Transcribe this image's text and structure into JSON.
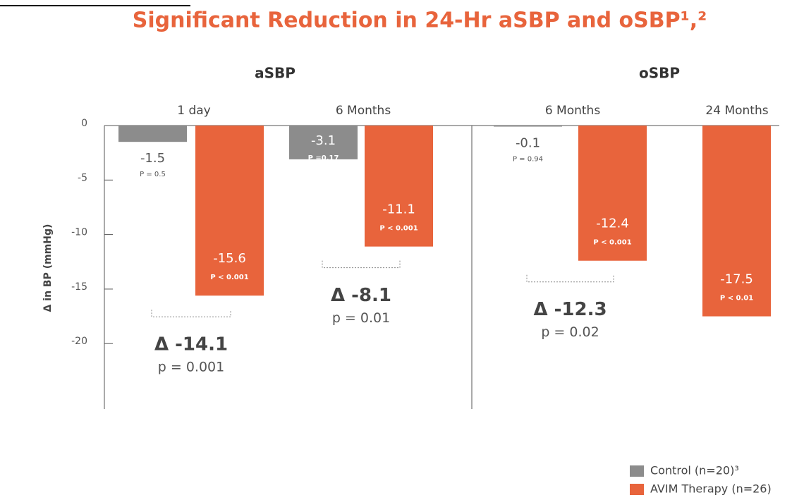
{
  "chart_data": {
    "type": "bar",
    "title": "Significant Reduction in 24-Hr aSBP and oSBP¹,²",
    "y_label": "Δ in BP (mmHg)",
    "panels": [
      {
        "name": "aSBP",
        "groups": [
          0,
          1
        ]
      },
      {
        "name": "oSBP",
        "groups": [
          2,
          3
        ]
      }
    ],
    "categories": [
      "1 day",
      "6 Months",
      "6 Months",
      "24 Months"
    ],
    "series": [
      {
        "name": "Control (n=20)³",
        "color": "#8c8c8c",
        "values": [
          -1.5,
          -3.1,
          -0.1,
          null
        ],
        "p_labels": [
          "P = 0.5",
          "P =0.17",
          "P = 0.94",
          null
        ]
      },
      {
        "name": "AVIM Therapy (n=26)",
        "color": "#e8643c",
        "values": [
          -15.6,
          -11.1,
          -12.4,
          -17.5
        ],
        "p_labels": [
          "P < 0.001",
          "P < 0.001",
          "P < 0.001",
          "P < 0.01"
        ]
      }
    ],
    "deltas": [
      {
        "label": "Δ -14.1",
        "p": "p = 0.001"
      },
      {
        "label": "Δ -8.1",
        "p": "p = 0.01"
      },
      {
        "label": "Δ -12.3",
        "p": "p = 0.02"
      },
      null
    ],
    "ylim": [
      -26,
      0
    ],
    "yticks": [
      0,
      -5,
      -10,
      -15,
      -20
    ],
    "legend": "lower right"
  }
}
